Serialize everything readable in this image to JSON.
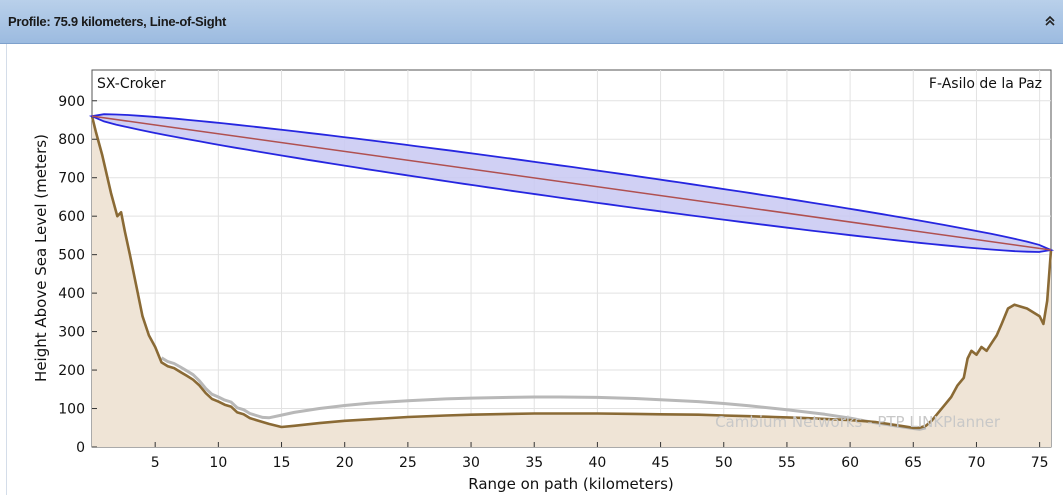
{
  "header": {
    "title": "Profile: 75.9 kilometers, Line-of-Sight",
    "collapse_icon": "double-chevron-up-icon"
  },
  "chart_data": {
    "type": "area",
    "title": "",
    "xlabel": "Range on path (kilometers)",
    "ylabel": "Height Above Sea Level (meters)",
    "xlim": [
      0,
      75.9
    ],
    "ylim": [
      0,
      980
    ],
    "x_ticks": [
      5,
      10,
      15,
      20,
      25,
      30,
      35,
      40,
      45,
      50,
      55,
      60,
      65,
      70,
      75
    ],
    "y_ticks": [
      0,
      100,
      200,
      300,
      400,
      500,
      600,
      700,
      800,
      900
    ],
    "grid": true,
    "left_site": "SX-Croker",
    "right_site": "F-Asilo de la Paz",
    "watermark": "Cambium Networks - PTP LINKPlanner",
    "line_of_sight": {
      "start": [
        0,
        860
      ],
      "end": [
        75.9,
        512
      ]
    },
    "fresnel_zone_max_half_width_m": 42,
    "colors": {
      "terrain_line": "#8a6a35",
      "terrain_fill": "#efe4d6",
      "obstruction_line": "#b8b8b8",
      "fresnel_fill": "#c8c8f2",
      "fresnel_edge": "#2626e0",
      "los_line": "#b05050",
      "grid": "#e2e2e2"
    },
    "series": [
      {
        "name": "Terrain",
        "x": [
          0,
          0.3,
          0.8,
          1.5,
          2,
          2.3,
          2.6,
          3,
          3.5,
          4,
          4.5,
          5,
          5.5,
          6,
          6.5,
          7,
          7.5,
          8,
          8.5,
          9,
          9.5,
          10,
          10.5,
          11,
          11.5,
          12,
          12.5,
          13,
          13.5,
          14,
          15,
          16,
          18,
          20,
          22,
          25,
          28,
          30,
          33,
          35,
          38,
          40,
          43,
          45,
          48,
          50,
          52,
          54,
          56,
          58,
          60,
          62,
          63,
          64,
          65,
          65.5,
          66,
          66.5,
          67,
          67.5,
          68,
          68.5,
          69,
          69.3,
          69.6,
          70,
          70.4,
          70.8,
          71.2,
          71.6,
          72,
          72.5,
          73,
          73.5,
          74,
          74.5,
          75,
          75.3,
          75.6,
          75.9
        ],
        "y": [
          860,
          820,
          760,
          660,
          600,
          610,
          560,
          500,
          420,
          340,
          290,
          260,
          220,
          210,
          205,
          195,
          185,
          175,
          160,
          140,
          125,
          118,
          110,
          105,
          90,
          85,
          75,
          70,
          65,
          60,
          52,
          55,
          62,
          68,
          72,
          78,
          82,
          84,
          86,
          87,
          87,
          87,
          86,
          85,
          84,
          82,
          80,
          78,
          76,
          73,
          70,
          65,
          60,
          55,
          50,
          50,
          55,
          70,
          90,
          110,
          130,
          160,
          180,
          230,
          250,
          240,
          260,
          250,
          270,
          290,
          320,
          360,
          370,
          365,
          360,
          350,
          340,
          320,
          380,
          512
        ]
      },
      {
        "name": "Obstruction",
        "x": [
          5.5,
          6,
          6.5,
          7,
          7.5,
          8,
          8.5,
          9,
          9.5,
          10,
          10.5,
          11,
          11.5,
          12,
          12.5,
          13,
          13.5,
          14,
          15,
          16,
          18,
          20,
          22,
          25,
          28,
          30,
          33,
          35,
          37,
          40,
          43,
          45,
          48,
          50,
          52,
          55,
          58,
          60,
          62,
          63,
          64,
          65,
          65.5,
          66
        ],
        "y": [
          232,
          222,
          217,
          208,
          198,
          188,
          172,
          152,
          137,
          130,
          122,
          117,
          102,
          97,
          87,
          82,
          77,
          76,
          83,
          90,
          100,
          108,
          114,
          120,
          125,
          127,
          129,
          130,
          130,
          129,
          126,
          123,
          118,
          113,
          107,
          97,
          85,
          75,
          63,
          58,
          53,
          48,
          46,
          50
        ]
      }
    ]
  }
}
